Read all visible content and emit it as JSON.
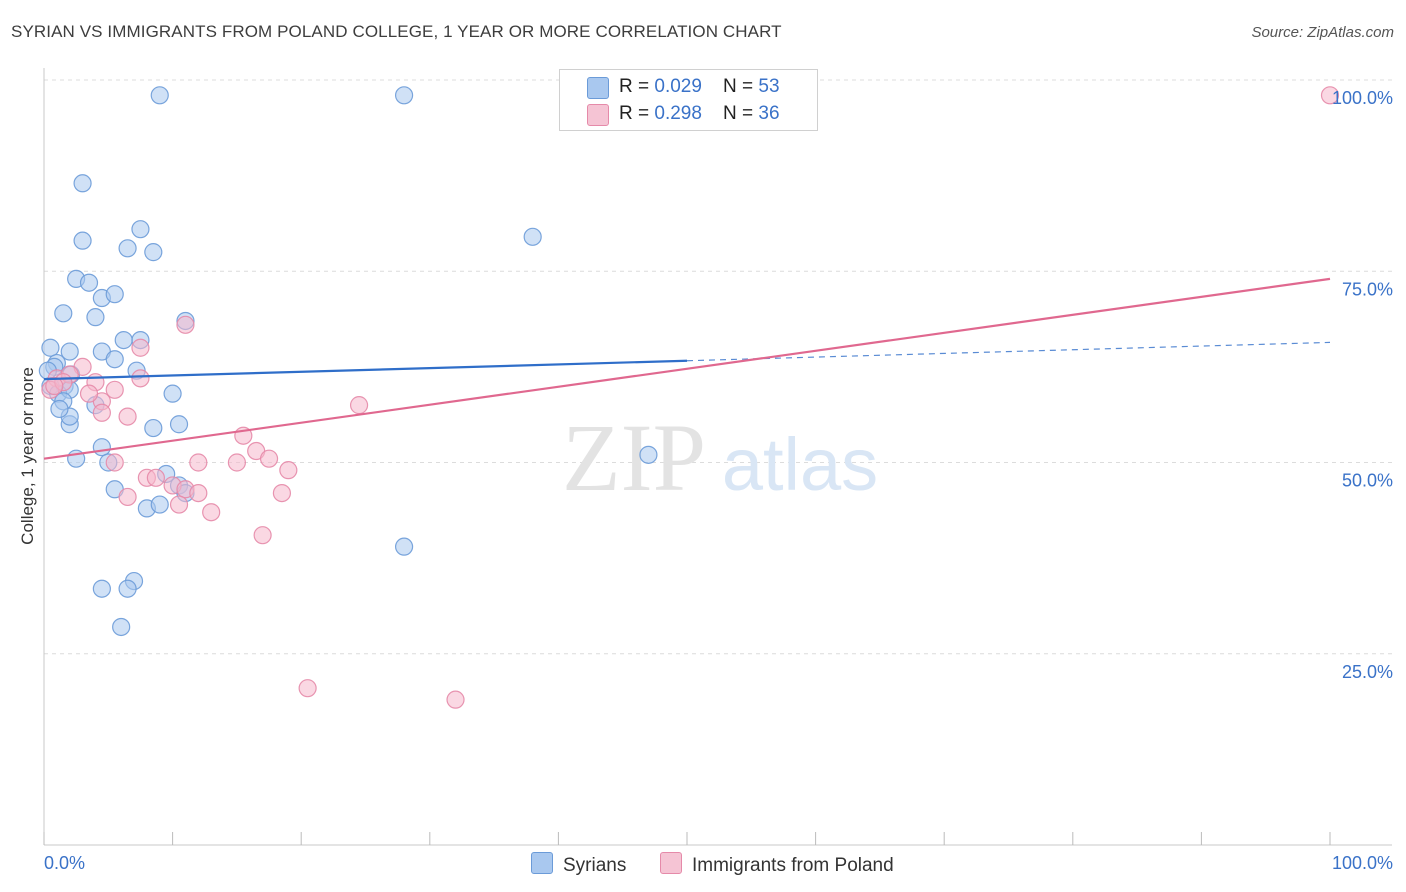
{
  "title": "SYRIAN VS IMMIGRANTS FROM POLAND COLLEGE, 1 YEAR OR MORE CORRELATION CHART",
  "source": "Source: ZipAtlas.com",
  "watermark": {
    "zip": "ZIP",
    "atlas": "atlas"
  },
  "colors": {
    "blue_fill": "#a9c8ef",
    "blue_stroke": "#6b9bd8",
    "blue_line": "#2f6ec9",
    "pink_fill": "#f5b8cc",
    "pink_stroke": "#e58aa9",
    "pink_line": "#e0688f",
    "axis_label": "#3a72c8",
    "grid": "#dcdcdc"
  },
  "legend": {
    "rows": [
      {
        "r_label": "R = ",
        "r_value": "0.029",
        "n_label": "N = ",
        "n_value": "53"
      },
      {
        "r_label": "R = ",
        "r_value": "0.298",
        "n_label": "N = ",
        "n_value": "36"
      }
    ]
  },
  "bottom_legend": [
    "Syrians",
    "Immigrants from Poland"
  ],
  "chart_data": {
    "type": "scatter",
    "title": "SYRIAN VS IMMIGRANTS FROM POLAND COLLEGE, 1 YEAR OR MORE CORRELATION CHART",
    "xlabel": "",
    "ylabel": "College, 1 year or more",
    "xlim": [
      0,
      100
    ],
    "ylim": [
      0,
      100
    ],
    "x_tick_labels": [
      "0.0%",
      "100.0%"
    ],
    "y_ticks": [
      25,
      50,
      75,
      100
    ],
    "y_tick_labels": [
      "25.0%",
      "50.0%",
      "75.0%",
      "100.0%"
    ],
    "series": [
      {
        "name": "Syrians",
        "r": 0.029,
        "n": 53,
        "trend": {
          "x0": 0,
          "y0": 60.9,
          "x1": 50,
          "y1": 63.3,
          "dashed_to_x": 100,
          "dashed_to_y": 65.7
        },
        "points": [
          [
            9,
            98
          ],
          [
            28,
            98
          ],
          [
            3,
            86.5
          ],
          [
            3,
            79
          ],
          [
            7.5,
            80.5
          ],
          [
            6.5,
            78
          ],
          [
            8.5,
            77.5
          ],
          [
            38,
            79.5
          ],
          [
            2.5,
            74
          ],
          [
            3.5,
            73.5
          ],
          [
            4.5,
            71.5
          ],
          [
            5.5,
            72
          ],
          [
            1.5,
            69.5
          ],
          [
            4,
            69
          ],
          [
            11,
            68.5
          ],
          [
            6.2,
            66
          ],
          [
            7.5,
            66
          ],
          [
            0.5,
            65
          ],
          [
            2,
            64.5
          ],
          [
            4.5,
            64.5
          ],
          [
            5.5,
            63.5
          ],
          [
            1,
            63
          ],
          [
            0.8,
            62.5
          ],
          [
            7.2,
            62
          ],
          [
            0.3,
            62
          ],
          [
            2.1,
            61.5
          ],
          [
            1.6,
            60
          ],
          [
            0.5,
            60
          ],
          [
            1.1,
            59
          ],
          [
            2,
            59.5
          ],
          [
            10,
            59
          ],
          [
            1.5,
            58
          ],
          [
            4,
            57.5
          ],
          [
            2,
            55
          ],
          [
            8.5,
            54.5
          ],
          [
            10.5,
            55
          ],
          [
            4.5,
            52
          ],
          [
            5,
            50
          ],
          [
            2.5,
            50.5
          ],
          [
            47,
            51
          ],
          [
            9.5,
            48.5
          ],
          [
            10.5,
            47
          ],
          [
            5.5,
            46.5
          ],
          [
            11,
            46
          ],
          [
            8,
            44
          ],
          [
            9,
            44.5
          ],
          [
            28,
            39
          ],
          [
            7,
            34.5
          ],
          [
            6.5,
            33.5
          ],
          [
            4.5,
            33.5
          ],
          [
            6,
            28.5
          ],
          [
            2,
            56
          ],
          [
            1.2,
            57
          ]
        ]
      },
      {
        "name": "Immigrants from Poland",
        "r": 0.298,
        "n": 36,
        "trend": {
          "x0": 0,
          "y0": 50.5,
          "x1": 100,
          "y1": 74
        },
        "points": [
          [
            100,
            98
          ],
          [
            11,
            68
          ],
          [
            7.5,
            65
          ],
          [
            3,
            62.5
          ],
          [
            1,
            61
          ],
          [
            2,
            61.5
          ],
          [
            4,
            60.5
          ],
          [
            7.5,
            61
          ],
          [
            5.5,
            59.5
          ],
          [
            4.5,
            58
          ],
          [
            0.5,
            59.5
          ],
          [
            3.5,
            59
          ],
          [
            4.5,
            56.5
          ],
          [
            6.5,
            56
          ],
          [
            24.5,
            57.5
          ],
          [
            15.5,
            53.5
          ],
          [
            16.5,
            51.5
          ],
          [
            17.5,
            50.5
          ],
          [
            12,
            50
          ],
          [
            15,
            50
          ],
          [
            5.5,
            50
          ],
          [
            19,
            49
          ],
          [
            8,
            48
          ],
          [
            8.7,
            48
          ],
          [
            10,
            47
          ],
          [
            11,
            46.5
          ],
          [
            12,
            46
          ],
          [
            18.5,
            46
          ],
          [
            6.5,
            45.5
          ],
          [
            10.5,
            44.5
          ],
          [
            13,
            43.5
          ],
          [
            17,
            40.5
          ],
          [
            20.5,
            20.5
          ],
          [
            32,
            19
          ],
          [
            1.5,
            60.5
          ],
          [
            0.8,
            60
          ]
        ]
      }
    ]
  }
}
